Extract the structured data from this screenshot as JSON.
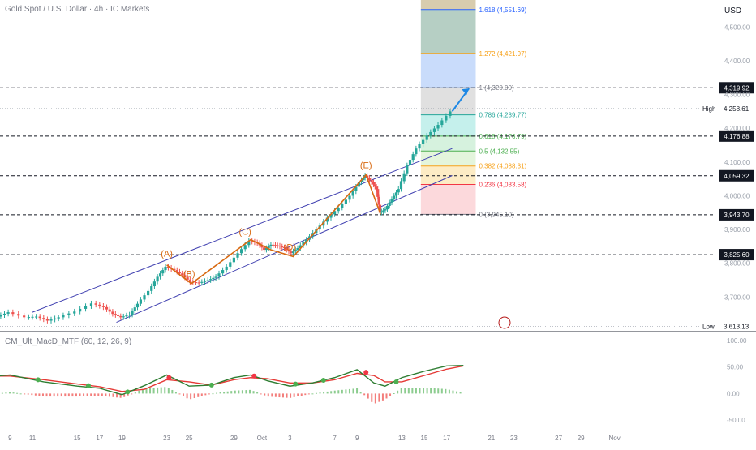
{
  "header": {
    "symbol": "Gold Spot / U.S. Dollar · 4h · IC Markets",
    "currency": "USD"
  },
  "indicator": {
    "label": "CM_Ult_MacD_MTF (60, 12, 26, 9)"
  },
  "chart_data": {
    "type": "candlestick",
    "price_ylim": [
      3600,
      4580
    ],
    "price_ticks": [
      "4,500.00",
      "4,400.00",
      "4,300.00",
      "4,200.00",
      "4,100.00",
      "4,000.00",
      "3,900.00",
      "3,800.00",
      "3,700.00"
    ],
    "price_tick_values": [
      4500,
      4400,
      4300,
      4200,
      4100,
      4000,
      3900,
      3800,
      3700
    ],
    "x_ticks": [
      {
        "label": "9",
        "day": 9
      },
      {
        "label": "11",
        "day": 11
      },
      {
        "label": "15",
        "day": 15
      },
      {
        "label": "17",
        "day": 17
      },
      {
        "label": "19",
        "day": 19
      },
      {
        "label": "23",
        "day": 23
      },
      {
        "label": "25",
        "day": 25
      },
      {
        "label": "29",
        "day": 29
      },
      {
        "label": "Oct",
        "day": 31.5
      },
      {
        "label": "3",
        "day": 34
      },
      {
        "label": "7",
        "day": 38
      },
      {
        "label": "9",
        "day": 40
      },
      {
        "label": "13",
        "day": 44
      },
      {
        "label": "15",
        "day": 46
      },
      {
        "label": "17",
        "day": 48
      },
      {
        "label": "21",
        "day": 52
      },
      {
        "label": "23",
        "day": 54
      },
      {
        "label": "27",
        "day": 58
      },
      {
        "label": "29",
        "day": 60
      },
      {
        "label": "Nov",
        "day": 63
      }
    ],
    "horizontal_levels": [
      {
        "label": "4,319.92",
        "value": 4319.92
      },
      {
        "label": "4,176.88",
        "value": 4176.88
      },
      {
        "label": "4,059.32",
        "value": 4059.32
      },
      {
        "label": "3,943.70",
        "value": 3943.7
      },
      {
        "label": "3,825.60",
        "value": 3825.6
      }
    ],
    "high": {
      "label": "High",
      "value_label": "4,258.61",
      "value": 4258.61
    },
    "low": {
      "label": "Low",
      "value_label": "3,613.13",
      "value": 3613.13
    },
    "fib_levels": [
      {
        "label": "1.618 (4,551.69)",
        "value": 4551.69,
        "color": "#2962ff"
      },
      {
        "label": "1.272 (4,421.97)",
        "value": 4421.97,
        "color": "#f7a21b"
      },
      {
        "label": "1 (4,320.00)",
        "value": 4320.0,
        "color": "#787b86"
      },
      {
        "label": "0.786 (4,239.77)",
        "value": 4239.77,
        "color": "#26a69a"
      },
      {
        "label": "0.618 (4,176.79)",
        "value": 4176.79,
        "color": "#4caf50"
      },
      {
        "label": "0.5 (4,132.55)",
        "value": 4132.55,
        "color": "#4caf50"
      },
      {
        "label": "0.382 (4,088.31)",
        "value": 4088.31,
        "color": "#f7a21b"
      },
      {
        "label": "0.236 (4,033.58)",
        "value": 4033.58,
        "color": "#f23645"
      },
      {
        "label": "0 (3,945.10)",
        "value": 3945.1,
        "color": "#787b86"
      }
    ],
    "wave_labels": [
      {
        "label": "(A)",
        "day": 23,
        "value": 3800
      },
      {
        "label": "(B)",
        "day": 25,
        "value": 3740
      },
      {
        "label": "(C)",
        "day": 30,
        "value": 3866
      },
      {
        "label": "(D)",
        "day": 34,
        "value": 3820
      },
      {
        "label": "(E)",
        "day": 40.8,
        "value": 4062
      }
    ],
    "wave_path": [
      {
        "day": 23.0,
        "value": 3795
      },
      {
        "day": 25.2,
        "value": 3740
      },
      {
        "day": 30.5,
        "value": 3870
      },
      {
        "day": 32.3,
        "value": 3840
      },
      {
        "day": 34.3,
        "value": 3820
      },
      {
        "day": 40.8,
        "value": 4062
      },
      {
        "day": 42.1,
        "value": 3945
      }
    ],
    "channel": {
      "upper": [
        {
          "day": 11,
          "value": 3655
        },
        {
          "day": 48.5,
          "value": 4140
        }
      ],
      "lower": [
        {
          "day": 18.5,
          "value": 3625
        },
        {
          "day": 48.5,
          "value": 4060
        }
      ]
    },
    "price_path": [
      {
        "day": 8.0,
        "value": 3642
      },
      {
        "day": 9.0,
        "value": 3655
      },
      {
        "day": 10.5,
        "value": 3640
      },
      {
        "day": 11.5,
        "value": 3642
      },
      {
        "day": 12.5,
        "value": 3630
      },
      {
        "day": 13.5,
        "value": 3640
      },
      {
        "day": 15.0,
        "value": 3657
      },
      {
        "day": 16.5,
        "value": 3681
      },
      {
        "day": 17.5,
        "value": 3670
      },
      {
        "day": 18.3,
        "value": 3650
      },
      {
        "day": 19.0,
        "value": 3640
      },
      {
        "day": 19.8,
        "value": 3648
      },
      {
        "day": 20.5,
        "value": 3680
      },
      {
        "day": 21.5,
        "value": 3718
      },
      {
        "day": 22.3,
        "value": 3760
      },
      {
        "day": 23.0,
        "value": 3790
      },
      {
        "day": 23.8,
        "value": 3780
      },
      {
        "day": 24.5,
        "value": 3765
      },
      {
        "day": 25.2,
        "value": 3745
      },
      {
        "day": 26.0,
        "value": 3742
      },
      {
        "day": 26.8,
        "value": 3750
      },
      {
        "day": 27.5,
        "value": 3760
      },
      {
        "day": 28.5,
        "value": 3790
      },
      {
        "day": 29.5,
        "value": 3830
      },
      {
        "day": 30.5,
        "value": 3866
      },
      {
        "day": 31.2,
        "value": 3860
      },
      {
        "day": 31.8,
        "value": 3840
      },
      {
        "day": 32.4,
        "value": 3855
      },
      {
        "day": 33.0,
        "value": 3852
      },
      {
        "day": 33.6,
        "value": 3845
      },
      {
        "day": 34.2,
        "value": 3830
      },
      {
        "day": 34.8,
        "value": 3845
      },
      {
        "day": 35.6,
        "value": 3870
      },
      {
        "day": 36.5,
        "value": 3900
      },
      {
        "day": 37.5,
        "value": 3935
      },
      {
        "day": 38.5,
        "value": 3965
      },
      {
        "day": 39.5,
        "value": 4000
      },
      {
        "day": 40.3,
        "value": 4040
      },
      {
        "day": 40.8,
        "value": 4060
      },
      {
        "day": 41.4,
        "value": 4040
      },
      {
        "day": 41.8,
        "value": 4020
      },
      {
        "day": 42.1,
        "value": 3950
      },
      {
        "day": 42.6,
        "value": 3960
      },
      {
        "day": 43.2,
        "value": 3990
      },
      {
        "day": 43.8,
        "value": 4020
      },
      {
        "day": 44.6,
        "value": 4090
      },
      {
        "day": 45.4,
        "value": 4140
      },
      {
        "day": 46.4,
        "value": 4178
      },
      {
        "day": 47.4,
        "value": 4210
      },
      {
        "day": 48.5,
        "value": 4250
      }
    ],
    "projection_arrow": [
      {
        "day": 48.5,
        "value": 4250
      },
      {
        "day": 50.0,
        "value": 4318
      }
    ],
    "macd": {
      "ylim": [
        -65,
        112
      ],
      "ticks": [
        "100.00",
        "50.00",
        "0.00",
        "-50.00"
      ],
      "tick_values": [
        100,
        50,
        0,
        -50
      ],
      "macd_line": [
        {
          "day": 6,
          "value": 30
        },
        {
          "day": 9,
          "value": 35
        },
        {
          "day": 12,
          "value": 22
        },
        {
          "day": 15,
          "value": 14
        },
        {
          "day": 17,
          "value": 10
        },
        {
          "day": 19,
          "value": -2
        },
        {
          "day": 21,
          "value": 15
        },
        {
          "day": 23,
          "value": 35
        },
        {
          "day": 25,
          "value": 14
        },
        {
          "day": 27,
          "value": 16
        },
        {
          "day": 29,
          "value": 30
        },
        {
          "day": 30.5,
          "value": 35
        },
        {
          "day": 32,
          "value": 24
        },
        {
          "day": 34,
          "value": 14
        },
        {
          "day": 36,
          "value": 20
        },
        {
          "day": 38,
          "value": 30
        },
        {
          "day": 40,
          "value": 45
        },
        {
          "day": 41.5,
          "value": 20
        },
        {
          "day": 42.5,
          "value": 14
        },
        {
          "day": 44,
          "value": 30
        },
        {
          "day": 46,
          "value": 42
        },
        {
          "day": 48,
          "value": 52
        },
        {
          "day": 49.5,
          "value": 53
        }
      ],
      "signal_line": [
        {
          "day": 6,
          "value": 33
        },
        {
          "day": 9,
          "value": 33
        },
        {
          "day": 12,
          "value": 26
        },
        {
          "day": 15,
          "value": 18
        },
        {
          "day": 17,
          "value": 13
        },
        {
          "day": 19,
          "value": 4
        },
        {
          "day": 21,
          "value": 8
        },
        {
          "day": 23,
          "value": 26
        },
        {
          "day": 25,
          "value": 22
        },
        {
          "day": 27,
          "value": 16
        },
        {
          "day": 29,
          "value": 26
        },
        {
          "day": 30.5,
          "value": 30
        },
        {
          "day": 32,
          "value": 28
        },
        {
          "day": 34,
          "value": 20
        },
        {
          "day": 36,
          "value": 20
        },
        {
          "day": 38,
          "value": 26
        },
        {
          "day": 40,
          "value": 38
        },
        {
          "day": 41.5,
          "value": 34
        },
        {
          "day": 42.5,
          "value": 22
        },
        {
          "day": 44,
          "value": 22
        },
        {
          "day": 46,
          "value": 34
        },
        {
          "day": 48,
          "value": 46
        },
        {
          "day": 49.5,
          "value": 52
        }
      ],
      "cross_dots": [
        {
          "day": 6.5,
          "value": 34,
          "color": "#f23645"
        },
        {
          "day": 11.5,
          "value": 26,
          "color": "#4caf50"
        },
        {
          "day": 16,
          "value": 15,
          "color": "#4caf50"
        },
        {
          "day": 19.5,
          "value": 3,
          "color": "#4caf50"
        },
        {
          "day": 23.2,
          "value": 30,
          "color": "#f23645"
        },
        {
          "day": 27,
          "value": 16,
          "color": "#4caf50"
        },
        {
          "day": 30.8,
          "value": 33,
          "color": "#f23645"
        },
        {
          "day": 34.5,
          "value": 18,
          "color": "#4caf50"
        },
        {
          "day": 37,
          "value": 25,
          "color": "#4caf50"
        },
        {
          "day": 40.8,
          "value": 40,
          "color": "#f23645"
        },
        {
          "day": 43.5,
          "value": 22,
          "color": "#4caf50"
        }
      ]
    }
  }
}
